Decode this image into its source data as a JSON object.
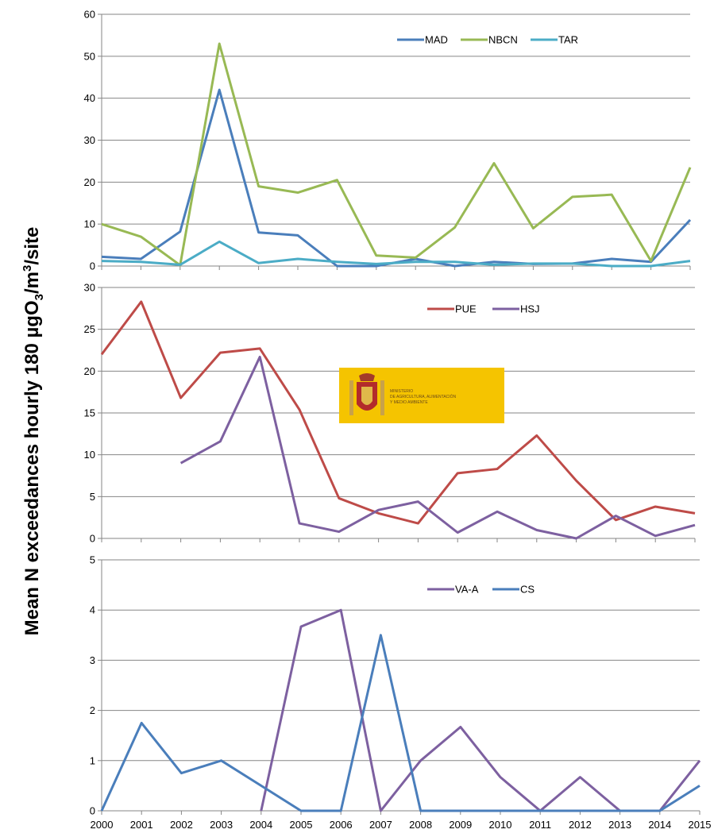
{
  "ylabel": {
    "main": "Mean N exceedances hourly   180 µgO",
    "sub": "3",
    "mid": "/m",
    "sup": "3",
    "end": "/site"
  },
  "logo": {
    "lines": [
      "MINISTERIO",
      "DE AGRICULTURA, ALIMENTACIÓN",
      "Y MEDIO AMBIENTE"
    ]
  },
  "colors": {
    "MAD": "#4a7ebb",
    "NBCN": "#98b954",
    "TAR": "#4bacc6",
    "PUE": "#be4b48",
    "HSJ": "#7d60a0",
    "VA-A": "#7d60a0",
    "CS": "#4a7ebb",
    "grid": "#868686",
    "logo_bg": "#f5c400"
  },
  "chart_data": [
    {
      "type": "line",
      "x": [
        2000,
        2001,
        2002,
        2003,
        2004,
        2005,
        2006,
        2007,
        2008,
        2009,
        2010,
        2011,
        2012,
        2013,
        2014,
        2015
      ],
      "ylim": [
        0,
        60
      ],
      "yticks": [
        0,
        10,
        20,
        30,
        40,
        50,
        60
      ],
      "grid": true,
      "legend": "top-right",
      "series": [
        {
          "name": "MAD",
          "values": [
            2.2,
            1.7,
            8.2,
            42,
            8,
            7.3,
            0,
            0,
            1.7,
            0,
            1,
            0.5,
            0.6,
            1.7,
            1,
            11
          ]
        },
        {
          "name": "NBCN",
          "values": [
            10,
            7,
            0.2,
            53,
            19,
            17.5,
            20.5,
            2.5,
            2,
            9.2,
            24.5,
            9,
            16.5,
            17,
            1.2,
            23.5
          ]
        },
        {
          "name": "TAR",
          "values": [
            1.2,
            1,
            0.3,
            5.8,
            0.7,
            1.7,
            1,
            0.5,
            1,
            1,
            0.3,
            0.6,
            0.6,
            0,
            0,
            1.2
          ]
        }
      ]
    },
    {
      "type": "line",
      "x": [
        2000,
        2001,
        2002,
        2003,
        2004,
        2005,
        2006,
        2007,
        2008,
        2009,
        2010,
        2011,
        2012,
        2013,
        2014,
        2015
      ],
      "ylim": [
        0,
        30
      ],
      "yticks": [
        0,
        5,
        10,
        15,
        20,
        25,
        30
      ],
      "grid": true,
      "legend": "top-right",
      "series": [
        {
          "name": "PUE",
          "values": [
            22,
            28.3,
            16.8,
            22.2,
            22.7,
            15.4,
            4.8,
            3,
            1.8,
            7.8,
            8.3,
            12.3,
            6.9,
            2.2,
            3.8,
            3
          ]
        },
        {
          "name": "HSJ",
          "values": [
            null,
            null,
            9,
            11.6,
            21.7,
            1.8,
            0.8,
            3.4,
            4.4,
            0.7,
            3.2,
            1,
            0,
            2.7,
            0.3,
            1.6
          ]
        }
      ]
    },
    {
      "type": "line",
      "x": [
        2000,
        2001,
        2002,
        2003,
        2004,
        2005,
        2006,
        2007,
        2008,
        2009,
        2010,
        2011,
        2012,
        2013,
        2014,
        2015
      ],
      "xtick_labels": [
        "2000",
        "2001",
        "2002",
        "2003",
        "2004",
        "2005",
        "2006",
        "2007",
        "2008",
        "2009",
        "2010",
        "2011",
        "2012",
        "2013",
        "2014",
        "2015"
      ],
      "ylim": [
        0,
        5
      ],
      "yticks": [
        0,
        1,
        2,
        3,
        4,
        5
      ],
      "grid": true,
      "legend": "top-right",
      "series": [
        {
          "name": "VA-A",
          "values": [
            null,
            null,
            null,
            null,
            0,
            3.67,
            4,
            0,
            1,
            1.67,
            0.67,
            0,
            0.67,
            0,
            0,
            1
          ]
        },
        {
          "name": "CS",
          "values": [
            0,
            1.75,
            0.75,
            1,
            0.5,
            0,
            0,
            3.5,
            0,
            0,
            0,
            0,
            0,
            0,
            0,
            0.5
          ]
        }
      ]
    }
  ]
}
